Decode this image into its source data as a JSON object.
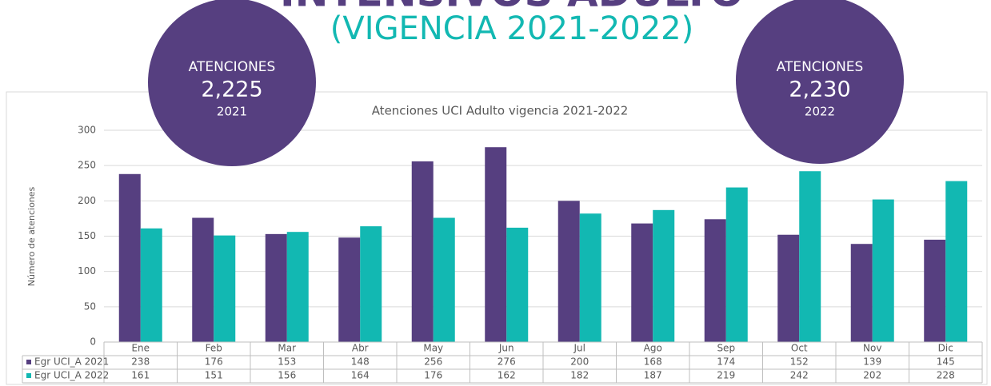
{
  "header": {
    "title": "INTENSIVOS ADULTO",
    "subtitle": "(VIGENCIA 2021-2022)"
  },
  "badges": [
    {
      "label": "ATENCIONES",
      "value": "2,225",
      "year": "2021"
    },
    {
      "label": "ATENCIONES",
      "value": "2,230",
      "year": "2022"
    }
  ],
  "chart_data": {
    "type": "bar",
    "title": "Atenciones UCI Adulto  vigencia 2021-2022",
    "y_label": "Número de atenciones",
    "categories": [
      "Ene",
      "Feb",
      "Mar",
      "Abr",
      "May",
      "Jun",
      "Jul",
      "Ago",
      "Sep",
      "Oct",
      "Nov",
      "Dic"
    ],
    "series": [
      {
        "name": "Egr UCI_A 2021",
        "color": "#563f80",
        "values": [
          238,
          176,
          153,
          148,
          256,
          276,
          200,
          168,
          174,
          152,
          139,
          145
        ]
      },
      {
        "name": "Egr UCI_A 2022",
        "color": "#12b8b2",
        "values": [
          161,
          151,
          156,
          164,
          176,
          162,
          182,
          187,
          219,
          242,
          202,
          228
        ]
      }
    ],
    "ylim": [
      0,
      300
    ],
    "yticks": [
      0,
      50,
      100,
      150,
      200,
      250,
      300
    ],
    "grid": true,
    "data_table": true
  }
}
